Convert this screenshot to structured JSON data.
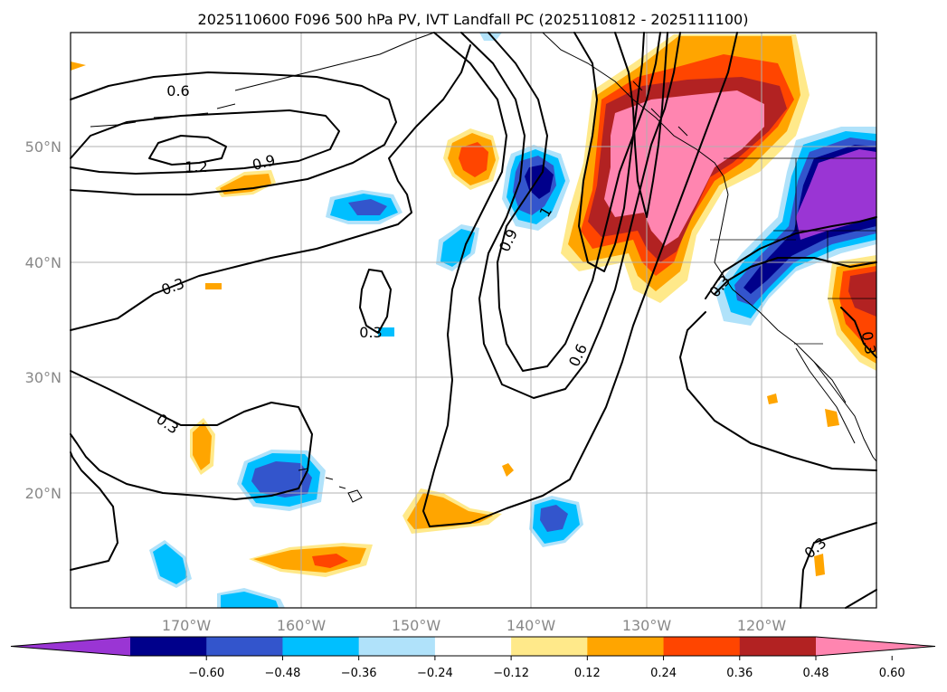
{
  "title": "2025110600 F096 500 hPa PV, IVT Landfall PC (2025110812 - 2025111100)",
  "lat_labels": [
    "50°N",
    "40°N",
    "30°N",
    "20°N"
  ],
  "lon_labels": [
    "170°W",
    "160°W",
    "150°W",
    "140°W",
    "130°W",
    "120°W"
  ],
  "contour_labels": {
    "c06a": "0.6",
    "c12": "1.2",
    "c09a": "0.9",
    "c03a": "0.3",
    "c03b": "0.3",
    "c03c": "0.3",
    "c09b": "0.9",
    "c06b": "0.6",
    "c03d": "0.3",
    "c03e": "0.3",
    "c03f": "0.3",
    "c1": "1"
  },
  "colorbar": {
    "ticks": [
      "−0.60",
      "−0.48",
      "−0.36",
      "−0.24",
      "−0.12",
      "0.12",
      "0.24",
      "0.36",
      "0.48",
      "0.60"
    ],
    "colors": [
      "#9a35d4",
      "#00008b",
      "#3355cc",
      "#00bfff",
      "#b0e2fa",
      "#ffffff",
      "#ffe98a",
      "#ffa500",
      "#ff4500",
      "#b22222",
      "#ff85b0"
    ]
  }
}
